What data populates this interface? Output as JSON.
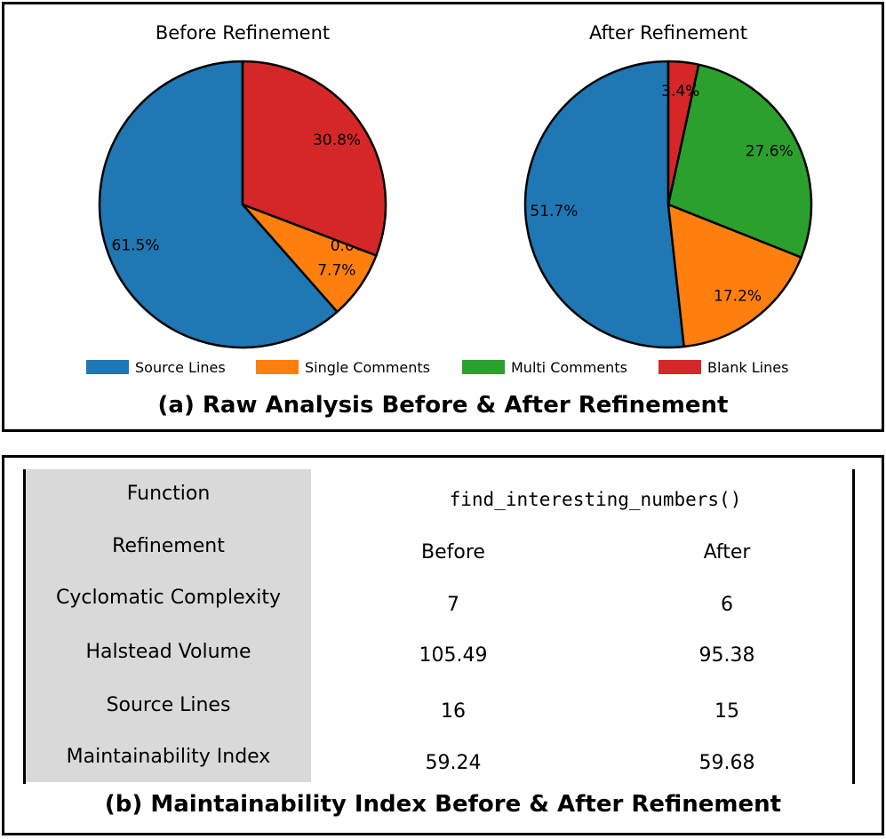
{
  "chart_data": [
    {
      "type": "pie",
      "title": "Before Refinement",
      "categories": [
        "Source Lines",
        "Single Comments",
        "Multi Comments",
        "Blank Lines"
      ],
      "values": [
        61.5,
        7.7,
        0.0,
        30.8
      ],
      "labels": [
        "61.5%",
        "7.7%",
        "0.0%",
        "30.8%"
      ]
    },
    {
      "type": "pie",
      "title": "After Refinement",
      "categories": [
        "Source Lines",
        "Single Comments",
        "Multi Comments",
        "Blank Lines"
      ],
      "values": [
        51.7,
        17.2,
        27.6,
        3.4
      ],
      "labels": [
        "51.7%",
        "17.2%",
        "27.6%",
        "3.4%"
      ]
    }
  ],
  "legend": {
    "items": [
      {
        "label": "Source Lines",
        "color": "#1f77b4"
      },
      {
        "label": "Single Comments",
        "color": "#ff7f0e"
      },
      {
        "label": "Multi Comments",
        "color": "#2ca02c"
      },
      {
        "label": "Blank Lines",
        "color": "#d62728"
      }
    ]
  },
  "colors": [
    "#1f77b4",
    "#ff7f0e",
    "#2ca02c",
    "#d62728"
  ],
  "captions": {
    "a": "(a) Raw Analysis Before & After Refinement",
    "b": "(b) Maintainability Index Before & After Refinement"
  },
  "table": {
    "function_label": "Function",
    "function_value": "find_interesting_numbers()",
    "rows": [
      {
        "label": "Refinement",
        "before": "Before",
        "after": "After"
      },
      {
        "label": "Cyclomatic Complexity",
        "before": "7",
        "after": "6"
      },
      {
        "label": "Halstead Volume",
        "before": "105.49",
        "after": "95.38"
      },
      {
        "label": "Source Lines",
        "before": "16",
        "after": "15"
      },
      {
        "label": "Maintainability Index",
        "before": "59.24",
        "after": "59.68"
      }
    ]
  }
}
